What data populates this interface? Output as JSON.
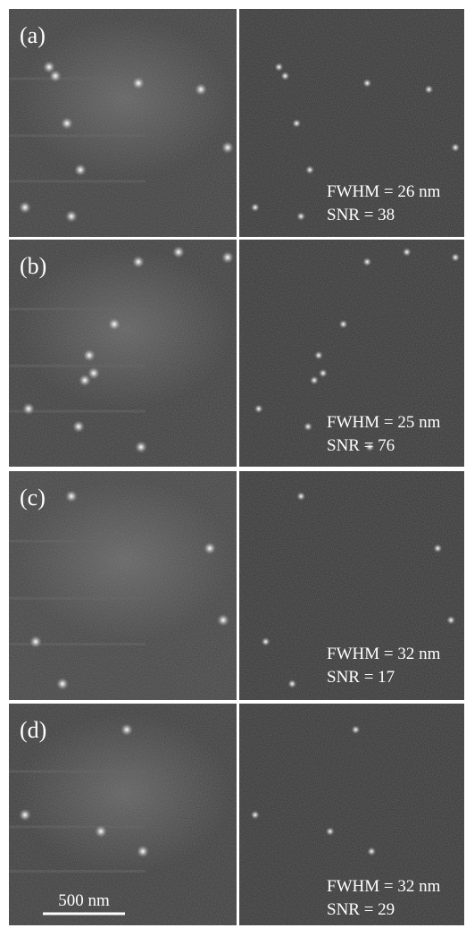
{
  "panels": [
    {
      "label": "(a)",
      "fwhm": "FWHM = 26 nm",
      "snr": "SNR = 38"
    },
    {
      "label": "(b)",
      "fwhm": "FWHM = 25 nm",
      "snr": "SNR = 76"
    },
    {
      "label": "(c)",
      "fwhm": "FWHM = 32 nm",
      "snr": "SNR = 17"
    },
    {
      "label": "(d)",
      "fwhm": "FWHM = 32 nm",
      "snr": "SNR = 29"
    }
  ],
  "scale_bar": "500 nm"
}
